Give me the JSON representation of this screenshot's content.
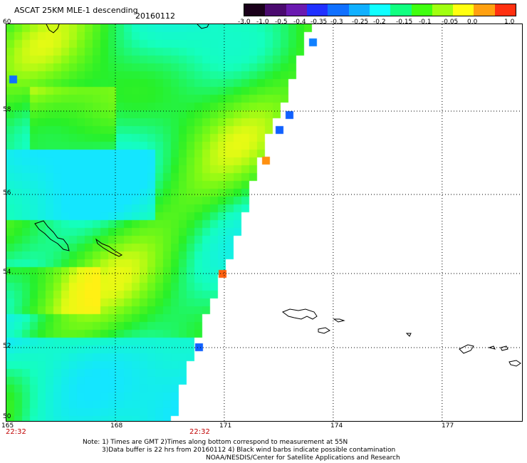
{
  "header": {
    "title": "ASCAT 25KM MLE-1 descending",
    "date": "20160112"
  },
  "colorbar": {
    "labels": [
      "-3.0",
      "-1.0",
      "-0.5",
      "-0.4",
      "-0.35",
      "-0.3",
      "-0.25",
      "-0.2",
      "-0.15",
      "-0.1",
      "-0.05",
      "0.0",
      "1.0"
    ],
    "colors": [
      "#1a001a",
      "#4a0a6e",
      "#6a1ab0",
      "#2030ff",
      "#1070ff",
      "#10b0ff",
      "#10ffff",
      "#10ff80",
      "#40ff10",
      "#a0ff10",
      "#ffff10",
      "#ffa010",
      "#ff3010"
    ]
  },
  "map": {
    "lat_labels": [
      "60",
      "58",
      "56",
      "54",
      "52",
      "50"
    ],
    "lon_labels": [
      "165",
      "168",
      "171",
      "174",
      "177"
    ],
    "time_labels": [
      "22:32",
      "22:32"
    ],
    "lat_range": [
      50,
      60
    ],
    "lon_range": [
      165,
      179.2
    ]
  },
  "notes": {
    "line1": "Note: 1) Times are GMT 2)Times along bottom correspond to measurement at 55N",
    "line2": "3)Data buffer is 22 hrs from 20160112 4) Black wind barbs indicate possible contamination",
    "line3": "NOAA/NESDIS/Center for Satellite Applications and Research"
  }
}
